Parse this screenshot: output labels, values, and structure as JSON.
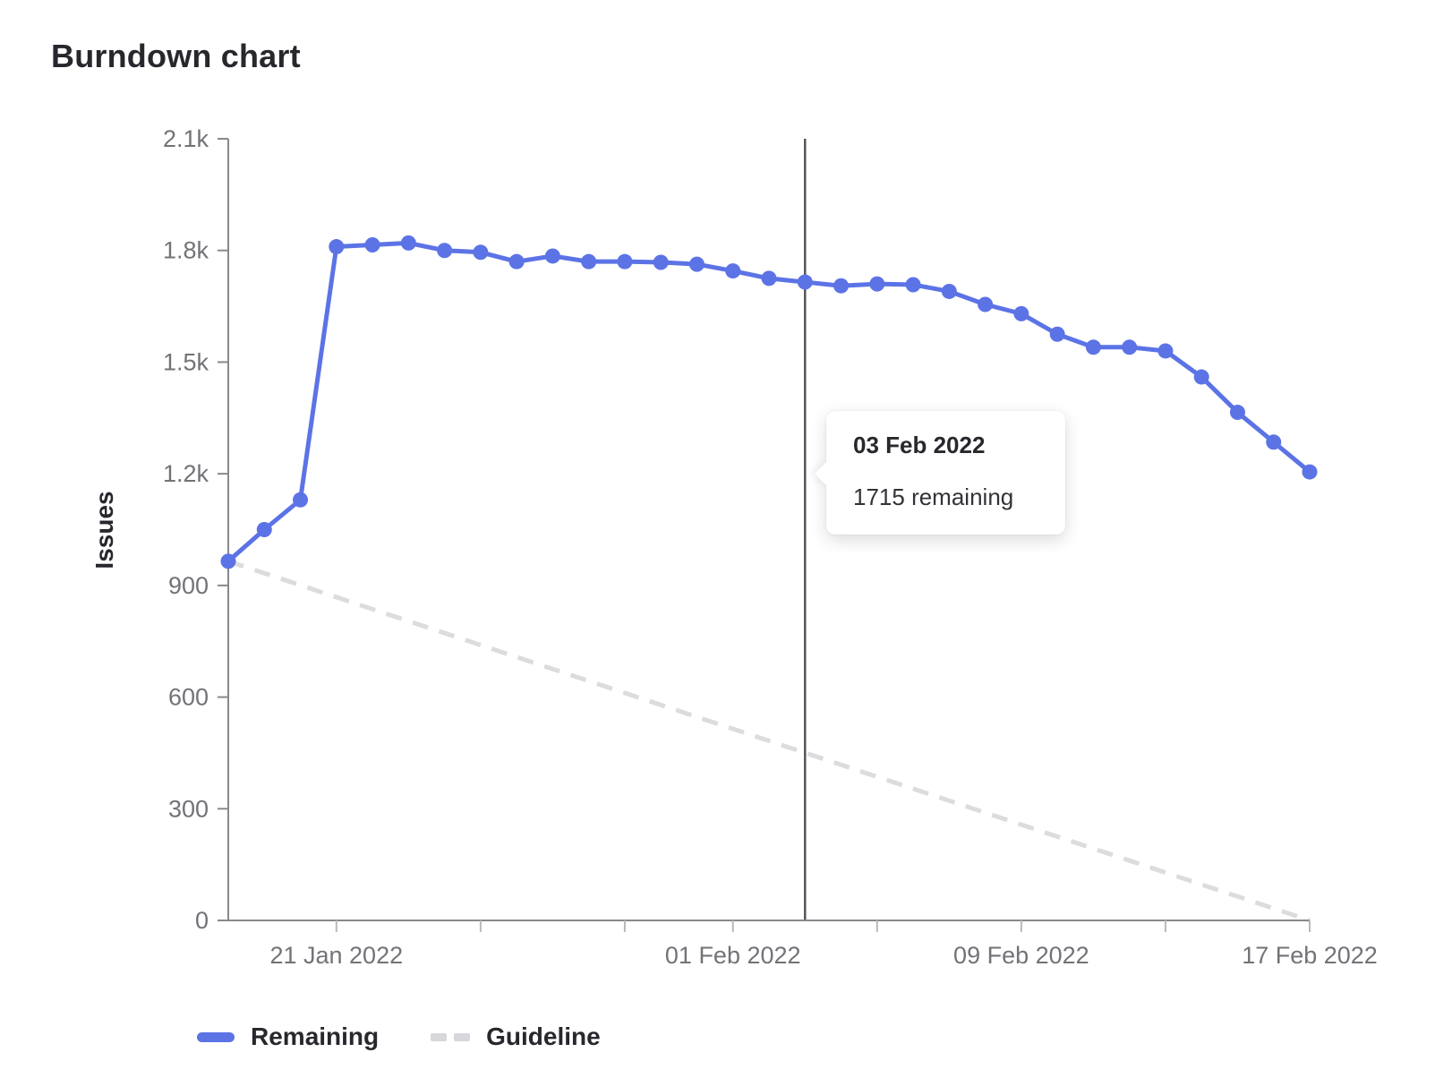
{
  "page": {
    "title": "Burndown chart"
  },
  "chart_data": {
    "type": "line",
    "title": "Burndown chart",
    "xlabel": "",
    "ylabel": "Issues",
    "ylim": [
      0,
      2100
    ],
    "grid": false,
    "legend_position": "bottom",
    "x": [
      "18 Jan 2022",
      "19 Jan 2022",
      "20 Jan 2022",
      "21 Jan 2022",
      "22 Jan 2022",
      "23 Jan 2022",
      "24 Jan 2022",
      "25 Jan 2022",
      "26 Jan 2022",
      "27 Jan 2022",
      "28 Jan 2022",
      "29 Jan 2022",
      "30 Jan 2022",
      "31 Jan 2022",
      "01 Feb 2022",
      "02 Feb 2022",
      "03 Feb 2022",
      "04 Feb 2022",
      "05 Feb 2022",
      "06 Feb 2022",
      "07 Feb 2022",
      "08 Feb 2022",
      "09 Feb 2022",
      "10 Feb 2022",
      "11 Feb 2022",
      "12 Feb 2022",
      "13 Feb 2022",
      "14 Feb 2022",
      "15 Feb 2022",
      "16 Feb 2022",
      "17 Feb 2022"
    ],
    "series": [
      {
        "name": "Remaining",
        "type": "line-with-points",
        "color": "#5c73e6",
        "values": [
          965,
          1050,
          1130,
          1810,
          1815,
          1820,
          1800,
          1795,
          1770,
          1785,
          1770,
          1770,
          1768,
          1763,
          1745,
          1725,
          1715,
          1705,
          1710,
          1708,
          1690,
          1655,
          1630,
          1575,
          1540,
          1540,
          1530,
          1460,
          1365,
          1285,
          1205
        ]
      },
      {
        "name": "Guideline",
        "type": "dashed-straight-line",
        "color": "#dcdcde",
        "start": 965,
        "end": 0
      }
    ],
    "y_ticks": [
      {
        "v": 0,
        "label": "0"
      },
      {
        "v": 300,
        "label": "300"
      },
      {
        "v": 600,
        "label": "600"
      },
      {
        "v": 900,
        "label": "900"
      },
      {
        "v": 1200,
        "label": "1.2k"
      },
      {
        "v": 1500,
        "label": "1.5k"
      },
      {
        "v": 1800,
        "label": "1.8k"
      },
      {
        "v": 2100,
        "label": "2.1k"
      }
    ],
    "x_ticks": [
      {
        "day": 3,
        "label": "21 Jan 2022"
      },
      {
        "day": 7,
        "label": ""
      },
      {
        "day": 11,
        "label": ""
      },
      {
        "day": 14,
        "label": "01 Feb 2022"
      },
      {
        "day": 18,
        "label": ""
      },
      {
        "day": 22,
        "label": "09 Feb 2022"
      },
      {
        "day": 26,
        "label": ""
      },
      {
        "day": 30,
        "label": "17 Feb 2022"
      }
    ],
    "today_line": {
      "date": "03 Feb 2022",
      "day_index": 16,
      "color": "#54545b"
    },
    "axis_color": "#89888d",
    "tick_text_color": "#737278"
  },
  "tooltip": {
    "title": "03 Feb 2022",
    "body": "1715 remaining"
  }
}
